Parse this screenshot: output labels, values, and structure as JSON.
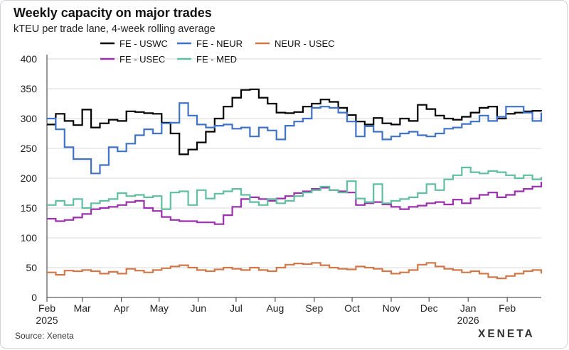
{
  "header": {
    "title": "Weekly capacity on major trades",
    "subtitle": "kTEU per trade lane, 4-week rolling average"
  },
  "footer": {
    "source": "Source: Xeneta",
    "logo": "XENETA"
  },
  "chart_data": {
    "type": "line",
    "title": "Weekly capacity on major trades",
    "subtitle": "kTEU per trade lane, 4-week rolling average",
    "xlabel": "",
    "ylabel": "",
    "ylim": [
      0,
      400
    ],
    "yticks": [
      0,
      50,
      100,
      150,
      200,
      250,
      300,
      350,
      400
    ],
    "xlim": [
      "2025-02-01",
      "2026-02-28"
    ],
    "xticks": [
      {
        "date": "2025-02-01",
        "label": "Feb",
        "year": "2025"
      },
      {
        "date": "2025-03-01",
        "label": "Mar",
        "year": ""
      },
      {
        "date": "2025-04-01",
        "label": "Apr",
        "year": ""
      },
      {
        "date": "2025-05-01",
        "label": "May",
        "year": ""
      },
      {
        "date": "2025-06-01",
        "label": "Jun",
        "year": ""
      },
      {
        "date": "2025-07-01",
        "label": "Jul",
        "year": ""
      },
      {
        "date": "2025-08-01",
        "label": "Aug",
        "year": ""
      },
      {
        "date": "2025-09-01",
        "label": "Sep",
        "year": ""
      },
      {
        "date": "2025-10-01",
        "label": "Oct",
        "year": ""
      },
      {
        "date": "2025-11-01",
        "label": "Nov",
        "year": ""
      },
      {
        "date": "2025-12-01",
        "label": "Dec",
        "year": ""
      },
      {
        "date": "2026-01-01",
        "label": "Jan",
        "year": "2026"
      },
      {
        "date": "2026-02-01",
        "label": "Feb",
        "year": ""
      }
    ],
    "grid": "horizontal",
    "legend_position": "top",
    "series": [
      {
        "name": "FE - USWC",
        "color": "#000000",
        "x": [
          "2025-02-01",
          "2025-02-08",
          "2025-02-15",
          "2025-02-22",
          "2025-03-01",
          "2025-03-08",
          "2025-03-15",
          "2025-03-22",
          "2025-03-29",
          "2025-04-05",
          "2025-04-12",
          "2025-04-19",
          "2025-04-26",
          "2025-05-03",
          "2025-05-10",
          "2025-05-17",
          "2025-05-24",
          "2025-05-31",
          "2025-06-07",
          "2025-06-14",
          "2025-06-21",
          "2025-06-28",
          "2025-07-05",
          "2025-07-12",
          "2025-07-19",
          "2025-07-26",
          "2025-08-02",
          "2025-08-09",
          "2025-08-16",
          "2025-08-23",
          "2025-08-30",
          "2025-09-06",
          "2025-09-13",
          "2025-09-20",
          "2025-09-27",
          "2025-10-04",
          "2025-10-11",
          "2025-10-18",
          "2025-10-25",
          "2025-11-01",
          "2025-11-08",
          "2025-11-15",
          "2025-11-22",
          "2025-11-29",
          "2025-12-06",
          "2025-12-13",
          "2025-12-20",
          "2025-12-27",
          "2026-01-03",
          "2026-01-10",
          "2026-01-17",
          "2026-01-24",
          "2026-01-31",
          "2026-02-07",
          "2026-02-14",
          "2026-02-21",
          "2026-02-28"
        ],
        "y": [
          290,
          308,
          296,
          289,
          315,
          285,
          292,
          298,
          296,
          312,
          311,
          309,
          308,
          293,
          275,
          240,
          248,
          260,
          278,
          300,
          320,
          335,
          348,
          349,
          335,
          325,
          310,
          309,
          311,
          320,
          325,
          332,
          328,
          318,
          306,
          295,
          290,
          301,
          292,
          290,
          300,
          296,
          323,
          316,
          305,
          300,
          298,
          303,
          310,
          318,
          320,
          300,
          308,
          310,
          312,
          313,
          312
        ]
      },
      {
        "name": "FE - NEUR",
        "color": "#3f72c8",
        "x": [
          "2025-02-01",
          "2025-02-08",
          "2025-02-15",
          "2025-02-22",
          "2025-03-01",
          "2025-03-08",
          "2025-03-15",
          "2025-03-22",
          "2025-03-29",
          "2025-04-05",
          "2025-04-12",
          "2025-04-19",
          "2025-04-26",
          "2025-05-03",
          "2025-05-10",
          "2025-05-17",
          "2025-05-24",
          "2025-05-31",
          "2025-06-07",
          "2025-06-14",
          "2025-06-21",
          "2025-06-28",
          "2025-07-05",
          "2025-07-12",
          "2025-07-19",
          "2025-07-26",
          "2025-08-02",
          "2025-08-09",
          "2025-08-16",
          "2025-08-23",
          "2025-08-30",
          "2025-09-06",
          "2025-09-13",
          "2025-09-20",
          "2025-09-27",
          "2025-10-04",
          "2025-10-11",
          "2025-10-18",
          "2025-10-25",
          "2025-11-01",
          "2025-11-08",
          "2025-11-15",
          "2025-11-22",
          "2025-11-29",
          "2025-12-06",
          "2025-12-13",
          "2025-12-20",
          "2025-12-27",
          "2026-01-03",
          "2026-01-10",
          "2026-01-17",
          "2026-01-24",
          "2026-01-31",
          "2026-02-07",
          "2026-02-14",
          "2026-02-21",
          "2026-02-28"
        ],
        "y": [
          300,
          282,
          252,
          232,
          232,
          208,
          222,
          252,
          245,
          258,
          272,
          282,
          275,
          292,
          293,
          326,
          305,
          290,
          285,
          288,
          290,
          283,
          285,
          270,
          285,
          280,
          265,
          288,
          295,
          300,
          318,
          320,
          318,
          310,
          295,
          270,
          287,
          278,
          265,
          270,
          275,
          278,
          272,
          270,
          275,
          283,
          285,
          291,
          295,
          305,
          296,
          303,
          320,
          320,
          310,
          296,
          310
        ]
      },
      {
        "name": "NEUR - USEC",
        "color": "#d0784a",
        "x": [
          "2025-02-01",
          "2025-02-08",
          "2025-02-15",
          "2025-02-22",
          "2025-03-01",
          "2025-03-08",
          "2025-03-15",
          "2025-03-22",
          "2025-03-29",
          "2025-04-05",
          "2025-04-12",
          "2025-04-19",
          "2025-04-26",
          "2025-05-03",
          "2025-05-10",
          "2025-05-17",
          "2025-05-24",
          "2025-05-31",
          "2025-06-07",
          "2025-06-14",
          "2025-06-21",
          "2025-06-28",
          "2025-07-05",
          "2025-07-12",
          "2025-07-19",
          "2025-07-26",
          "2025-08-02",
          "2025-08-09",
          "2025-08-16",
          "2025-08-23",
          "2025-08-30",
          "2025-09-06",
          "2025-09-13",
          "2025-09-20",
          "2025-09-27",
          "2025-10-04",
          "2025-10-11",
          "2025-10-18",
          "2025-10-25",
          "2025-11-01",
          "2025-11-08",
          "2025-11-15",
          "2025-11-22",
          "2025-11-29",
          "2025-12-06",
          "2025-12-13",
          "2025-12-20",
          "2025-12-27",
          "2026-01-03",
          "2026-01-10",
          "2026-01-17",
          "2026-01-24",
          "2026-01-31",
          "2026-02-07",
          "2026-02-14",
          "2026-02-21",
          "2026-02-28"
        ],
        "y": [
          42,
          38,
          45,
          44,
          46,
          44,
          40,
          43,
          40,
          48,
          45,
          42,
          46,
          49,
          52,
          54,
          50,
          46,
          44,
          47,
          50,
          48,
          46,
          50,
          46,
          44,
          50,
          55,
          57,
          56,
          58,
          54,
          50,
          48,
          47,
          52,
          50,
          48,
          44,
          40,
          42,
          46,
          55,
          58,
          52,
          48,
          46,
          42,
          44,
          40,
          34,
          32,
          36,
          40,
          44,
          46,
          40
        ]
      },
      {
        "name": "FE - USEC",
        "color": "#9b2fae",
        "x": [
          "2025-02-01",
          "2025-02-08",
          "2025-02-15",
          "2025-02-22",
          "2025-03-01",
          "2025-03-08",
          "2025-03-15",
          "2025-03-22",
          "2025-03-29",
          "2025-04-05",
          "2025-04-12",
          "2025-04-19",
          "2025-04-26",
          "2025-05-03",
          "2025-05-10",
          "2025-05-17",
          "2025-05-24",
          "2025-05-31",
          "2025-06-07",
          "2025-06-14",
          "2025-06-21",
          "2025-06-28",
          "2025-07-05",
          "2025-07-12",
          "2025-07-19",
          "2025-07-26",
          "2025-08-02",
          "2025-08-09",
          "2025-08-16",
          "2025-08-23",
          "2025-08-30",
          "2025-09-06",
          "2025-09-13",
          "2025-09-20",
          "2025-09-27",
          "2025-10-04",
          "2025-10-11",
          "2025-10-18",
          "2025-10-25",
          "2025-11-01",
          "2025-11-08",
          "2025-11-15",
          "2025-11-22",
          "2025-11-29",
          "2025-12-06",
          "2025-12-13",
          "2025-12-20",
          "2025-12-27",
          "2026-01-03",
          "2026-01-10",
          "2026-01-17",
          "2026-01-24",
          "2026-01-31",
          "2026-02-07",
          "2026-02-14",
          "2026-02-21",
          "2026-02-28"
        ],
        "y": [
          132,
          128,
          130,
          134,
          140,
          148,
          150,
          152,
          155,
          160,
          162,
          150,
          145,
          135,
          130,
          128,
          128,
          126,
          126,
          123,
          138,
          152,
          165,
          168,
          165,
          162,
          166,
          170,
          175,
          178,
          182,
          184,
          180,
          178,
          176,
          155,
          158,
          160,
          156,
          152,
          148,
          152,
          154,
          158,
          160,
          156,
          164,
          158,
          166,
          172,
          176,
          168,
          172,
          178,
          182,
          186,
          194
        ]
      },
      {
        "name": "FE - MED",
        "color": "#5fbfa0",
        "x": [
          "2025-02-01",
          "2025-02-08",
          "2025-02-15",
          "2025-02-22",
          "2025-03-01",
          "2025-03-08",
          "2025-03-15",
          "2025-03-22",
          "2025-03-29",
          "2025-04-05",
          "2025-04-12",
          "2025-04-19",
          "2025-04-26",
          "2025-05-03",
          "2025-05-10",
          "2025-05-17",
          "2025-05-24",
          "2025-05-31",
          "2025-06-07",
          "2025-06-14",
          "2025-06-21",
          "2025-06-28",
          "2025-07-05",
          "2025-07-12",
          "2025-07-19",
          "2025-07-26",
          "2025-08-02",
          "2025-08-09",
          "2025-08-16",
          "2025-08-23",
          "2025-08-30",
          "2025-09-06",
          "2025-09-13",
          "2025-09-20",
          "2025-09-27",
          "2025-10-04",
          "2025-10-11",
          "2025-10-18",
          "2025-10-25",
          "2025-11-01",
          "2025-11-08",
          "2025-11-15",
          "2025-11-22",
          "2025-11-29",
          "2025-12-06",
          "2025-12-13",
          "2025-12-20",
          "2025-12-27",
          "2026-01-03",
          "2026-01-10",
          "2026-01-17",
          "2026-01-24",
          "2026-01-31",
          "2026-02-07",
          "2026-02-14",
          "2026-02-21",
          "2026-02-28"
        ],
        "y": [
          155,
          162,
          155,
          165,
          150,
          158,
          162,
          165,
          175,
          170,
          172,
          168,
          170,
          148,
          176,
          178,
          155,
          180,
          166,
          174,
          178,
          182,
          172,
          160,
          155,
          165,
          158,
          162,
          170,
          176,
          180,
          186,
          180,
          176,
          195,
          166,
          160,
          190,
          158,
          162,
          165,
          168,
          175,
          190,
          180,
          198,
          205,
          218,
          210,
          208,
          212,
          210,
          205,
          200,
          205,
          198,
          202
        ]
      }
    ]
  }
}
